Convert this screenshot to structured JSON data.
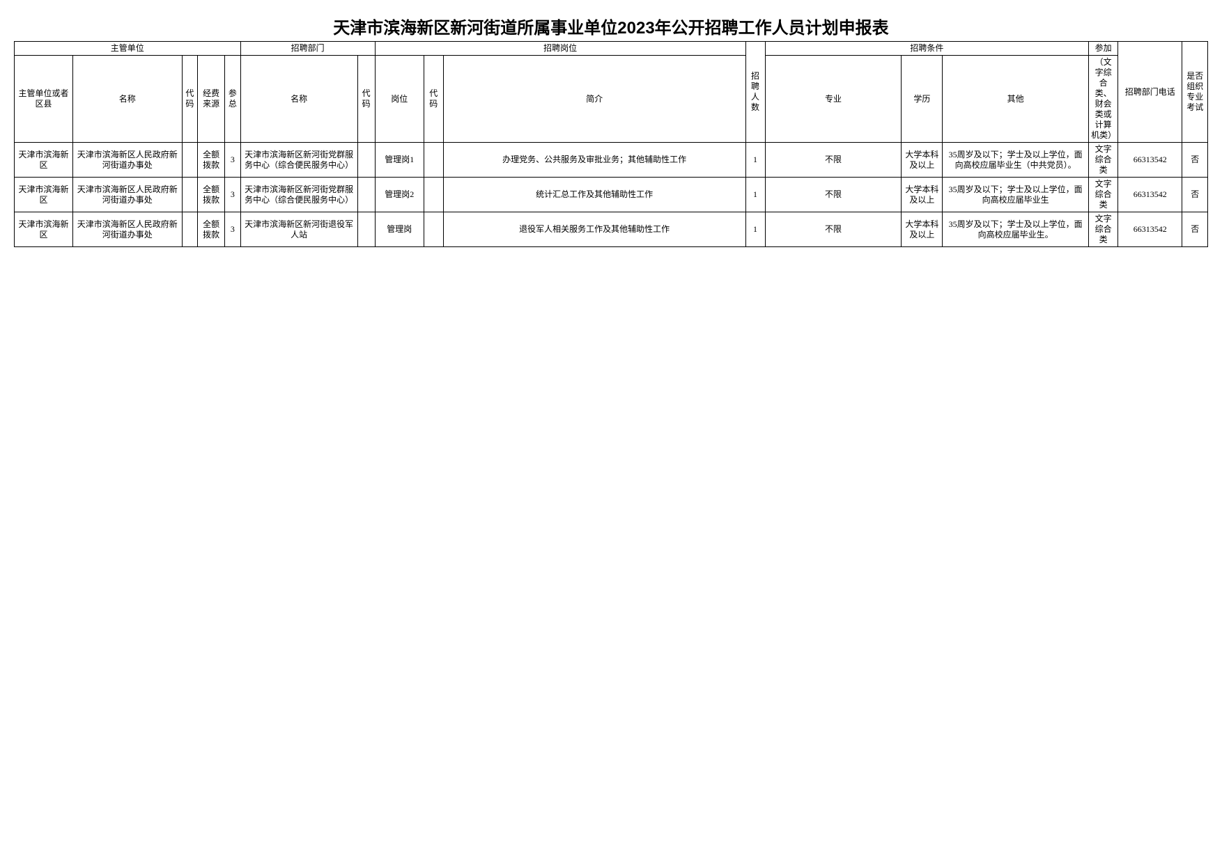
{
  "title": "天津市滨海新区新河街道所属事业单位2023年公开招聘工作人员计划申报表",
  "groups": {
    "g1": "主管单位",
    "g2": "招聘部门",
    "g3": "招聘岗位",
    "g4": "招聘条件",
    "g5": "参加"
  },
  "headers": {
    "h1": "主管单位或者区县",
    "h2": "名称",
    "h3": "代码",
    "h4": "经费来源",
    "h5": "参总",
    "h6": "名称",
    "h7": "代码",
    "h8": "岗位",
    "h9": "代码",
    "h10": "简介",
    "h11": "招聘人数",
    "h12": "专业",
    "h13": "学历",
    "h14": "其他",
    "h15": "（文字综合类、财会类或计算机类）",
    "h16": "招聘部门电话",
    "h17": "是否组织专业考试"
  },
  "rows": [
    {
      "c1": "天津市滨海新区",
      "c2": "天津市滨海新区人民政府新河街道办事处",
      "c3": "",
      "c4": "全额拨款",
      "c5": "3",
      "c6": "天津市滨海新区新河街党群服务中心（综合便民服务中心）",
      "c7": "",
      "c8": "管理岗1",
      "c9": "",
      "c10": "办理党务、公共服务及审批业务；其他辅助性工作",
      "c11": "1",
      "c12": "不限",
      "c13": "大学本科及以上",
      "c14": "35周岁及以下；学士及以上学位，面向高校应届毕业生（中共党员）。",
      "c15": "文字综合类",
      "c16": "66313542",
      "c17": "否"
    },
    {
      "c1": "天津市滨海新区",
      "c2": "天津市滨海新区人民政府新河街道办事处",
      "c3": "",
      "c4": "全额拨款",
      "c5": "3",
      "c6": "天津市滨海新区新河街党群服务中心（综合便民服务中心）",
      "c7": "",
      "c8": "管理岗2",
      "c9": "",
      "c10": "统计汇总工作及其他辅助性工作",
      "c11": "1",
      "c12": "不限",
      "c13": "大学本科及以上",
      "c14": "35周岁及以下；学士及以上学位，面向高校应届毕业生",
      "c15": "文字综合类",
      "c16": "66313542",
      "c17": "否"
    },
    {
      "c1": "天津市滨海新区",
      "c2": "天津市滨海新区人民政府新河街道办事处",
      "c3": "",
      "c4": "全额拨款",
      "c5": "3",
      "c6": "天津市滨海新区新河街退役军人站",
      "c7": "",
      "c8": "管理岗",
      "c9": "",
      "c10": "退役军人相关服务工作及其他辅助性工作",
      "c11": "1",
      "c12": "不限",
      "c13": "大学本科及以上",
      "c14": "35周岁及以下；学士及以上学位，面向高校应届毕业生。",
      "c15": "文字综合类",
      "c16": "66313542",
      "c17": "否"
    }
  ],
  "widths": {
    "c1": 60,
    "c2": 112,
    "c3": 16,
    "c4": 28,
    "c5": 16,
    "c6": 120,
    "c7": 18,
    "c8": 50,
    "c9": 20,
    "c10": 310,
    "c11": 20,
    "c12": 140,
    "c13": 42,
    "c14": 150,
    "c15": 30,
    "c16": 66,
    "c17": 26
  }
}
